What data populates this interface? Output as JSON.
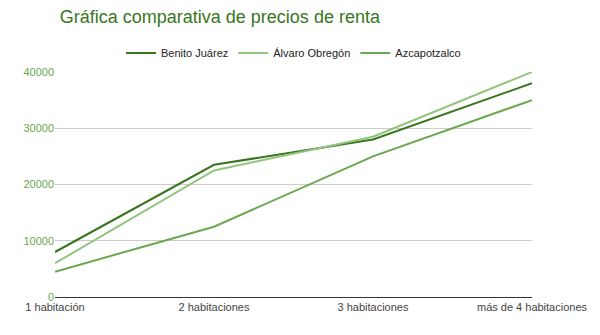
{
  "chart_data": {
    "type": "line",
    "title": "Gráfica comparativa de precios de renta",
    "categories": [
      "1 habitación",
      "2 habitaciones",
      "3 habitaciones",
      "más de 4 habitaciones"
    ],
    "series": [
      {
        "name": "Benito Juárez",
        "color": "#38761d",
        "values": [
          8000,
          23500,
          28000,
          38000
        ]
      },
      {
        "name": "Álvaro Obregón",
        "color": "#93c47d",
        "values": [
          6000,
          22500,
          28500,
          40000
        ]
      },
      {
        "name": "Azcapotzalco",
        "color": "#6aa84f",
        "values": [
          4500,
          12500,
          25000,
          35000
        ]
      }
    ],
    "ylim": [
      0,
      40000
    ],
    "yticks": [
      0,
      10000,
      20000,
      30000,
      40000
    ],
    "grid": true,
    "legend": "top"
  }
}
